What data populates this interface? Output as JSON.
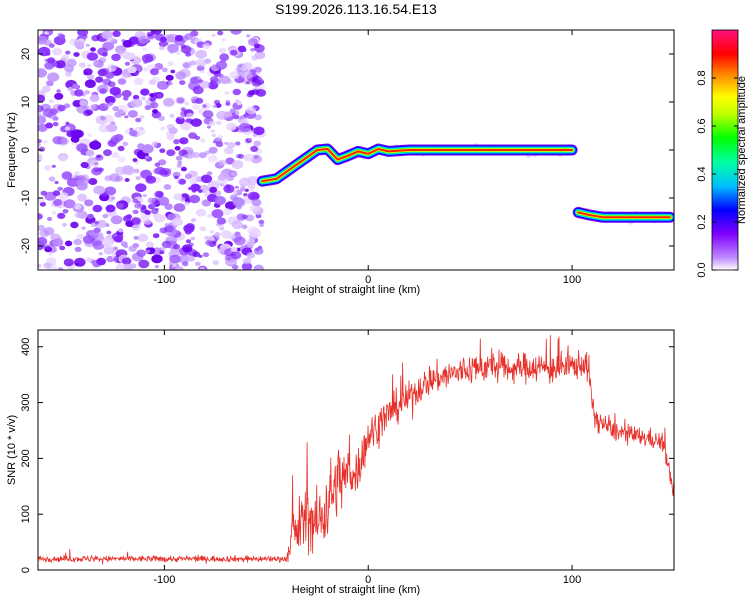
{
  "figure": {
    "title": "S199.2026.113.16.54.E13"
  },
  "chart_data": [
    {
      "type": "heatmap",
      "xlabel": "Height of straight line (km)",
      "ylabel": "Frequency (Hz)",
      "xlim": [
        -162,
        150
      ],
      "ylim": [
        -25,
        25
      ],
      "x_ticks": [
        -100,
        0,
        100
      ],
      "y_ticks": [
        -20,
        -10,
        0,
        10,
        20
      ],
      "colorbar": {
        "label": "Normalized spectral amplitude",
        "range": [
          0,
          1
        ],
        "ticks": [
          0.0,
          0.2,
          0.4,
          0.6,
          0.8
        ],
        "tick_labels": [
          "0.0",
          "0.2",
          "0.4",
          "0.6",
          "0.8"
        ],
        "colors": [
          "#ffffff",
          "#8000ff",
          "#0000ff",
          "#00ffff",
          "#00ff00",
          "#ffff00",
          "#ff0000",
          "#ff00ff"
        ]
      },
      "features": [
        {
          "kind": "scattered_noise",
          "x_range": [
            -162,
            -52
          ],
          "y_range": [
            -25,
            25
          ],
          "amplitude": 0.15
        },
        {
          "kind": "track",
          "x": [
            -52,
            -45,
            -40,
            -35,
            -30,
            -25,
            -20,
            -15,
            -10,
            -5,
            0,
            5,
            10,
            20,
            50,
            100
          ],
          "y": [
            -6.5,
            -6,
            -4.5,
            -3,
            -1.5,
            0,
            0.2,
            -2,
            -1.2,
            -0.3,
            -0.8,
            0.2,
            -0.3,
            0,
            0,
            0
          ],
          "amplitude": 0.8
        },
        {
          "kind": "track",
          "x": [
            103,
            108,
            115,
            130,
            148
          ],
          "y": [
            -13,
            -13.5,
            -14,
            -14,
            -14
          ],
          "amplitude": 0.85
        }
      ]
    },
    {
      "type": "line",
      "xlabel": "Height of straight line (km)",
      "ylabel": "SNR (10 * v/v)",
      "xlim": [
        -162,
        150
      ],
      "ylim": [
        0,
        430
      ],
      "x_ticks": [
        -100,
        0,
        100
      ],
      "y_ticks": [
        0,
        100,
        200,
        300,
        400
      ],
      "line_color": "#e8302a",
      "series": [
        {
          "envelope_x": [
            -162,
            -100,
            -40,
            -37,
            -30,
            -25,
            -20,
            -15,
            -10,
            -5,
            0,
            10,
            20,
            30,
            40,
            50,
            60,
            70,
            80,
            90,
            100,
            105,
            108,
            110,
            112,
            120,
            130,
            140,
            145,
            148,
            150
          ],
          "envelope_mean": [
            20,
            20,
            20,
            60,
            100,
            80,
            120,
            160,
            170,
            180,
            240,
            280,
            310,
            340,
            350,
            360,
            365,
            360,
            365,
            360,
            365,
            370,
            365,
            290,
            270,
            250,
            240,
            235,
            225,
            170,
            135
          ],
          "envelope_noise": [
            8,
            8,
            8,
            70,
            80,
            90,
            100,
            90,
            70,
            60,
            50,
            45,
            40,
            40,
            40,
            40,
            40,
            35,
            40,
            40,
            40,
            35,
            40,
            35,
            30,
            25,
            25,
            25,
            25,
            25,
            20
          ]
        }
      ]
    }
  ]
}
